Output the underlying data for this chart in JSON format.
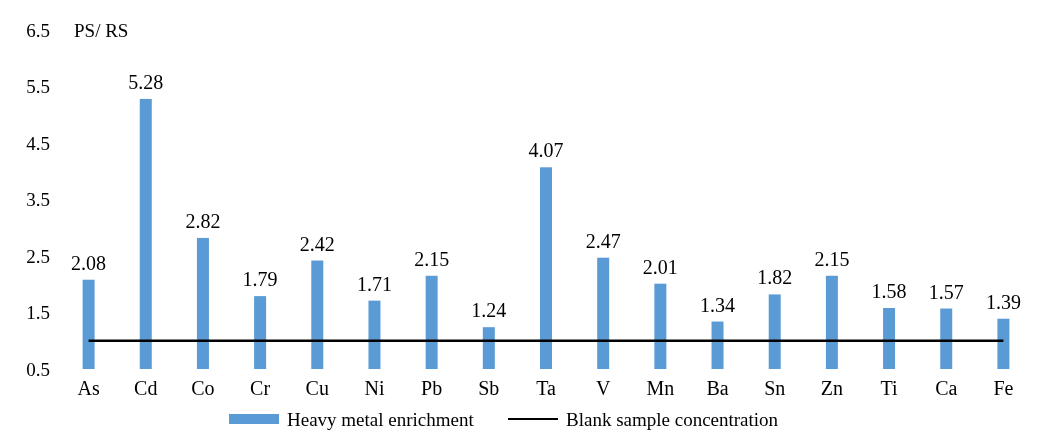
{
  "chart_data": {
    "type": "bar",
    "ylabel": "PS/ RS",
    "categories": [
      "As",
      "Cd",
      "Co",
      "Cr",
      "Cu",
      "Ni",
      "Pb",
      "Sb",
      "Ta",
      "V",
      "Mn",
      "Ba",
      "Sn",
      "Zn",
      "Ti",
      "Ca",
      "Fe"
    ],
    "series": [
      {
        "name": "Heavy metal enrichment",
        "color": "#5b9bd5",
        "values": [
          2.08,
          5.28,
          2.82,
          1.79,
          2.42,
          1.71,
          2.15,
          1.24,
          4.07,
          2.47,
          2.01,
          1.34,
          1.82,
          2.15,
          1.58,
          1.57,
          1.39
        ],
        "value_labels": [
          "2.08",
          "5.28",
          "2.82",
          "1.79",
          "2.42",
          "1.71",
          "2.15",
          "1.24",
          "4.07",
          "2.47",
          "2.01",
          "1.34",
          "1.82",
          "2.15",
          "1.58",
          "1.57",
          "1.39"
        ]
      },
      {
        "name": "Blank sample concentration",
        "type": "line",
        "color": "#000000",
        "values": [
          1,
          1,
          1,
          1,
          1,
          1,
          1,
          1,
          1,
          1,
          1,
          1,
          1,
          1,
          1,
          1,
          1
        ]
      }
    ],
    "ylim": [
      0.5,
      6.5
    ],
    "yticks": [
      0.5,
      1.5,
      2.5,
      3.5,
      4.5,
      5.5,
      6.5
    ],
    "grid": false,
    "legend": "bottom",
    "marker": "none"
  }
}
